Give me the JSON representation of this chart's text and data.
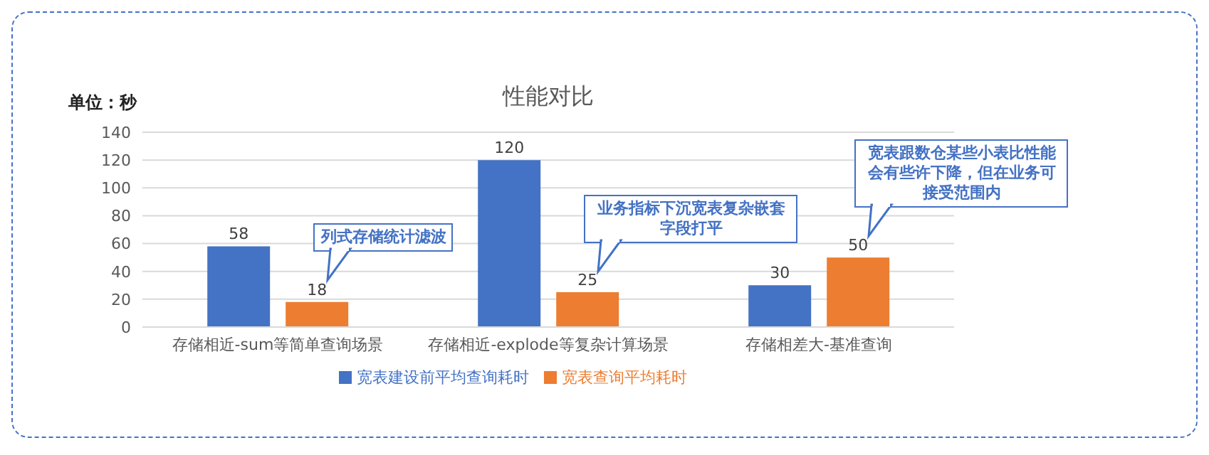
{
  "chart_data": {
    "type": "bar",
    "title": "性能对比",
    "ylabel": "单位：秒",
    "categories": [
      "存储相近-sum等简单查询场景",
      "存储相近-explode等复杂计算场景",
      "存储相差大-基准查询"
    ],
    "series": [
      {
        "name": "宽表建设前平均查询耗时",
        "color": "#4472c4",
        "values": [
          58,
          120,
          30
        ]
      },
      {
        "name": "宽表查询平均耗时",
        "color": "#ed7d31",
        "values": [
          18,
          25,
          50
        ]
      }
    ],
    "ylim": [
      0,
      140
    ],
    "yticks": [
      0,
      20,
      40,
      60,
      80,
      100,
      120,
      140
    ],
    "grid": "y",
    "legend": "bottom",
    "data_labels": true,
    "annotations": [
      "列式存储统计滤波",
      "业务指标下沉宽表复杂嵌套字段打平",
      "宽表跟数仓某些小表比性能会有些许下降，但在业务可接受范围内"
    ]
  }
}
